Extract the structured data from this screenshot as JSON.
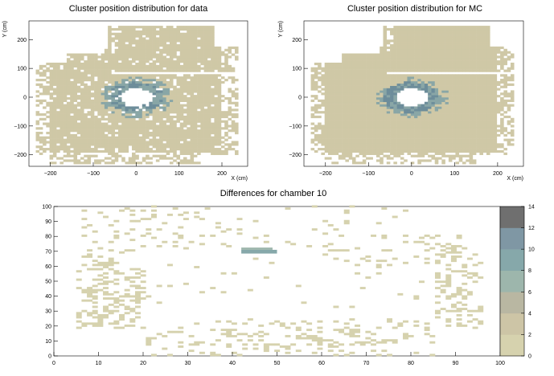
{
  "chart_data": [
    {
      "type": "heatmap",
      "title": "Cluster position distribution for data",
      "xlabel": "X (cm)",
      "ylabel": "Y (cm)",
      "xlim": [
        -250,
        260
      ],
      "ylim": [
        -240,
        265
      ],
      "xticks": [
        -200,
        -100,
        0,
        100,
        200
      ],
      "yticks": [
        -200,
        -100,
        0,
        100,
        200
      ],
      "xticklabels": [
        "−200",
        "−100",
        "0",
        "100",
        "200"
      ],
      "yticklabels": [
        "−200",
        "−100",
        "0",
        "100",
        "200"
      ],
      "colors": {
        "fill": "#cfc8a6",
        "ring": "#89a6a6",
        "inner": "#6d8d9a"
      }
    },
    {
      "type": "heatmap",
      "title": "Cluster position distribution for MC",
      "xlabel": "X (cm)",
      "ylabel": "Y (cm)",
      "xlim": [
        -250,
        260
      ],
      "ylim": [
        -240,
        265
      ],
      "xticks": [
        -200,
        -100,
        0,
        100,
        200
      ],
      "yticks": [
        -200,
        -100,
        0,
        100,
        200
      ],
      "xticklabels": [
        "−200",
        "−100",
        "0",
        "100",
        "200"
      ],
      "yticklabels": [
        "−200",
        "−100",
        "0",
        "100",
        "200"
      ],
      "colors": {
        "fill": "#cfc8a6",
        "ring": "#89a6a6",
        "inner": "#6d8d9a"
      }
    },
    {
      "type": "heatmap",
      "title": "Differences for chamber 10",
      "xlim": [
        0,
        100
      ],
      "ylim": [
        0,
        100
      ],
      "xticks": [
        0,
        10,
        20,
        30,
        40,
        50,
        60,
        70,
        80,
        90,
        100
      ],
      "yticks": [
        0,
        10,
        20,
        30,
        40,
        50,
        60,
        70,
        80,
        90,
        100
      ],
      "xticklabels": [
        "0",
        "10",
        "20",
        "30",
        "40",
        "50",
        "60",
        "70",
        "80",
        "90",
        "100"
      ],
      "yticklabels": [
        "0",
        "10",
        "20",
        "30",
        "40",
        "50",
        "60",
        "70",
        "80",
        "90",
        "100"
      ],
      "highlight_bins": [
        {
          "x": [
            42,
            50
          ],
          "y": [
            68.5,
            71
          ],
          "level": 8
        },
        {
          "x": [
            42,
            49
          ],
          "y": [
            71,
            72.5
          ],
          "level": 6
        }
      ],
      "colorbar": {
        "ticks": [
          "0",
          "2",
          "4",
          "6",
          "8",
          "10",
          "12",
          "14"
        ],
        "range": [
          0,
          14
        ],
        "colors": [
          "#d6d2ae",
          "#cdc5a6",
          "#b9b7a2",
          "#9db6ac",
          "#86a8aa",
          "#7f97a4",
          "#6f6f6f"
        ]
      }
    }
  ]
}
